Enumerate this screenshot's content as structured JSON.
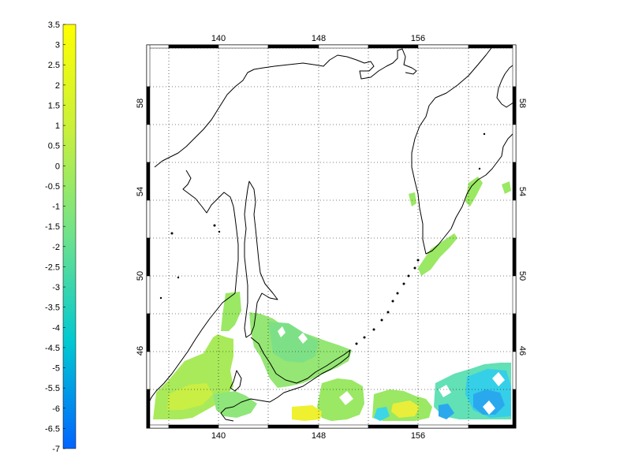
{
  "colorbar": {
    "ticks": [
      "3.5",
      "3",
      "2.5",
      "2",
      "1.5",
      "1",
      "0.5",
      "0",
      "-0.5",
      "-1",
      "-1.5",
      "-2",
      "-2.5",
      "-3",
      "-3.5",
      "-4",
      "-4.5",
      "-5",
      "-5.5",
      "-6",
      "-6.5",
      "-7"
    ],
    "colors": [
      "#ffff00",
      "#c8f03c",
      "#3cdc78",
      "#00c8c8",
      "#0064ff"
    ]
  },
  "map": {
    "lon_ticks": [
      "140",
      "148",
      "156"
    ],
    "lat_ticks": [
      "58",
      "54",
      "50",
      "46"
    ],
    "colors": {
      "coast": "#000000",
      "grid": "#000000",
      "green": "#9ae864",
      "lime": "#c2ee52",
      "aqua": "#68e6a8",
      "cyan": "#3cd6e6",
      "blue": "#1ea6f0",
      "yellow": "#f4f22a"
    }
  }
}
